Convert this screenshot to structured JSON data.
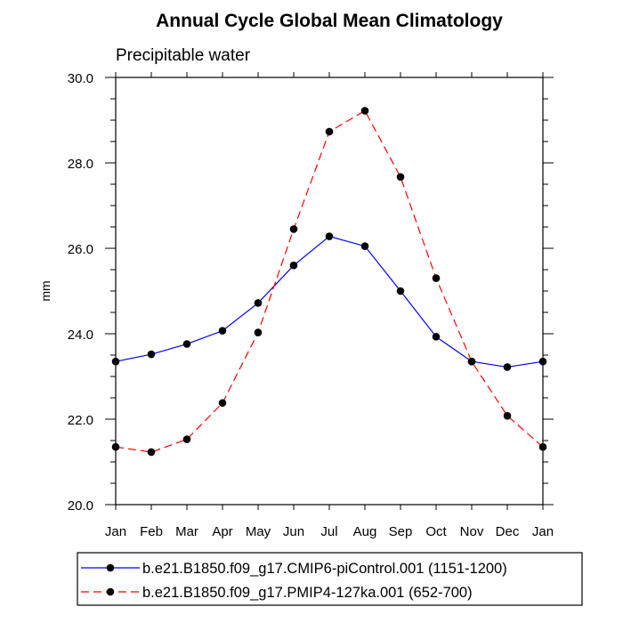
{
  "chart_data": {
    "type": "line",
    "title": "Annual Cycle Global Mean Climatology",
    "subtitle": "Precipitable water",
    "xlabel": "",
    "ylabel": "mm",
    "ylim": [
      20.0,
      30.0
    ],
    "yticks": [
      "20.0",
      "22.0",
      "24.0",
      "26.0",
      "28.0",
      "30.0"
    ],
    "categories": [
      "Jan",
      "Feb",
      "Mar",
      "Apr",
      "May",
      "Jun",
      "Jul",
      "Aug",
      "Sep",
      "Oct",
      "Nov",
      "Dec",
      "Jan"
    ],
    "grid": false,
    "legend_position": "bottom",
    "series": [
      {
        "name": "b.e21.B1850.f09_g17.CMIP6-piControl.001 (1151-1200)",
        "color": "#0000ff",
        "dash": "solid",
        "values": [
          23.35,
          23.52,
          23.76,
          24.07,
          24.72,
          25.6,
          26.28,
          26.05,
          25.0,
          23.93,
          23.35,
          23.22,
          23.35
        ]
      },
      {
        "name": "b.e21.B1850.f09_g17.PMIP4-127ka.001 (652-700)",
        "color": "#ff0000",
        "dash": "dashed",
        "values": [
          21.35,
          21.23,
          21.53,
          22.38,
          24.03,
          26.45,
          28.73,
          29.22,
          27.67,
          25.3,
          23.35,
          22.08,
          21.35
        ]
      }
    ]
  }
}
